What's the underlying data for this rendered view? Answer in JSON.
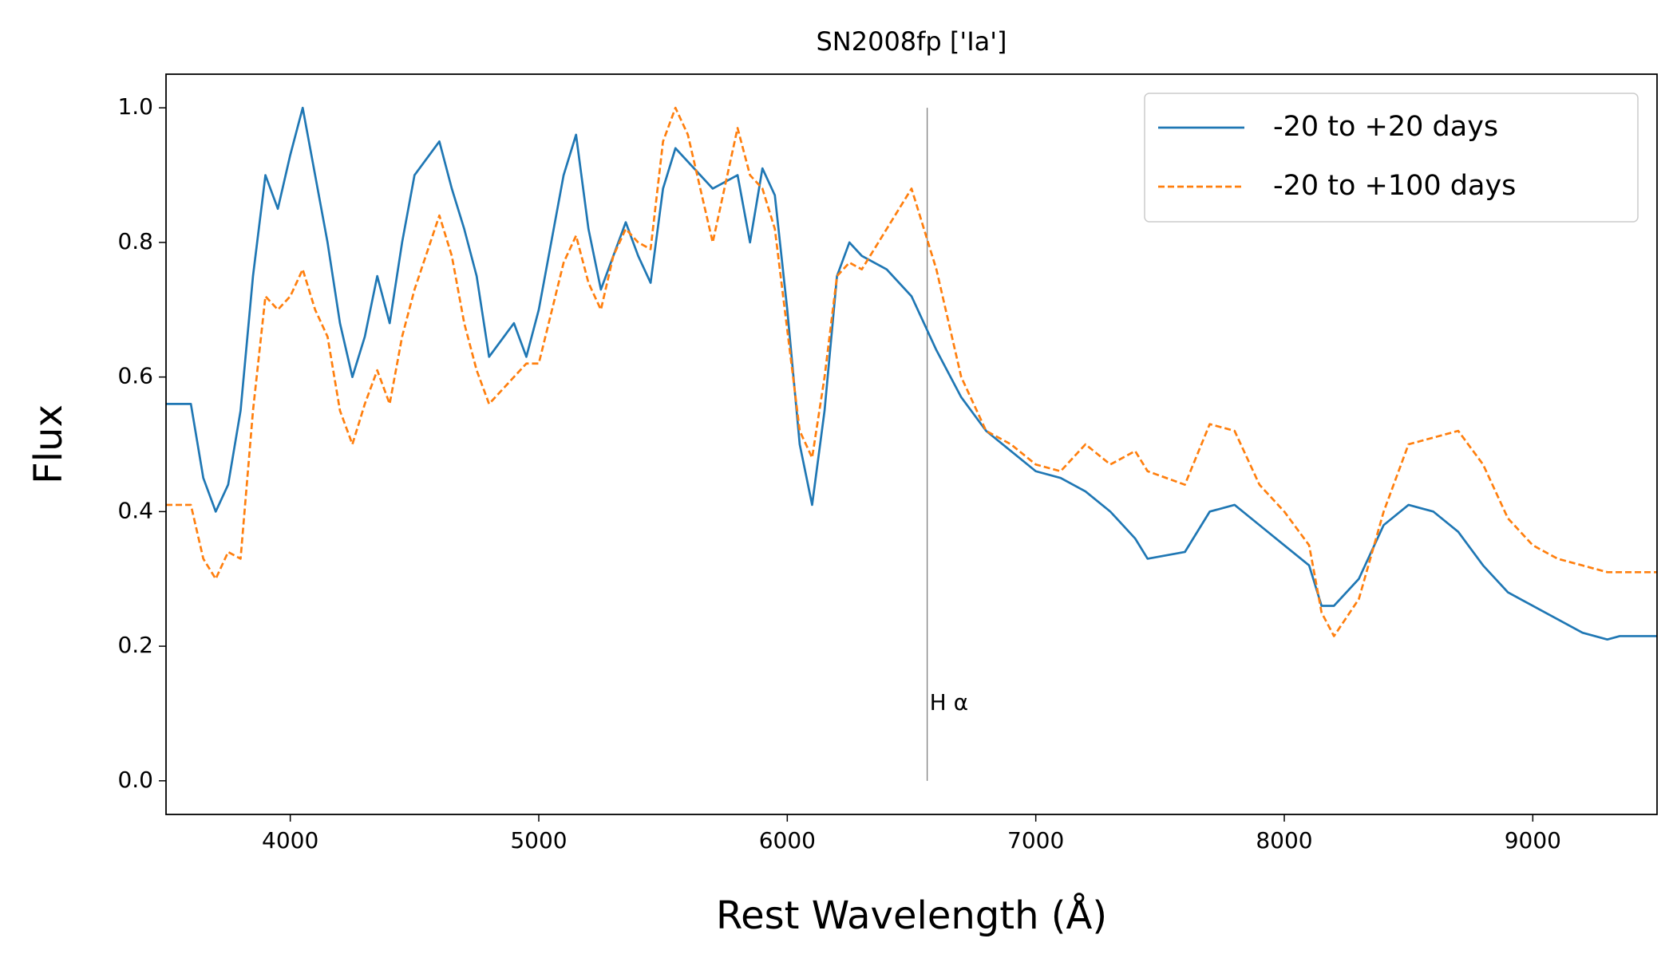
{
  "chart_data": {
    "type": "line",
    "title": "SN2008fp ['Ia']",
    "xlabel": "Rest Wavelength (Å)",
    "ylabel": "Flux",
    "x": [
      3500,
      3600,
      3650,
      3700,
      3750,
      3800,
      3850,
      3900,
      3950,
      4000,
      4050,
      4100,
      4150,
      4200,
      4250,
      4300,
      4350,
      4400,
      4450,
      4500,
      4600,
      4650,
      4700,
      4750,
      4800,
      4900,
      4950,
      5000,
      5100,
      5150,
      5200,
      5250,
      5300,
      5350,
      5400,
      5450,
      5500,
      5550,
      5600,
      5700,
      5800,
      5850,
      5900,
      5950,
      6000,
      6050,
      6100,
      6150,
      6200,
      6250,
      6300,
      6400,
      6500,
      6600,
      6700,
      6800,
      6900,
      7000,
      7100,
      7200,
      7300,
      7400,
      7450,
      7600,
      7700,
      7800,
      7900,
      8000,
      8100,
      8150,
      8200,
      8300,
      8400,
      8500,
      8600,
      8700,
      8800,
      8900,
      9000,
      9100,
      9200,
      9300,
      9350,
      9500
    ],
    "series": [
      {
        "name": "-20 to +20 days",
        "color": "#1f77b4",
        "dash": "solid",
        "values": [
          0.56,
          0.56,
          0.45,
          0.4,
          0.44,
          0.55,
          0.75,
          0.9,
          0.85,
          0.93,
          1.0,
          0.9,
          0.8,
          0.68,
          0.6,
          0.66,
          0.75,
          0.68,
          0.8,
          0.9,
          0.95,
          0.88,
          0.82,
          0.75,
          0.63,
          0.68,
          0.63,
          0.7,
          0.9,
          0.96,
          0.82,
          0.73,
          0.78,
          0.83,
          0.78,
          0.74,
          0.88,
          0.94,
          0.92,
          0.88,
          0.9,
          0.8,
          0.91,
          0.87,
          0.7,
          0.5,
          0.41,
          0.55,
          0.75,
          0.8,
          0.78,
          0.76,
          0.72,
          0.64,
          0.57,
          0.52,
          0.49,
          0.46,
          0.45,
          0.43,
          0.4,
          0.36,
          0.33,
          0.34,
          0.4,
          0.41,
          0.38,
          0.35,
          0.32,
          0.26,
          0.26,
          0.3,
          0.38,
          0.41,
          0.4,
          0.37,
          0.32,
          0.28,
          0.26,
          0.24,
          0.22,
          0.21,
          0.215,
          0.215
        ]
      },
      {
        "name": "-20 to +100 days",
        "color": "#ff7f0e",
        "dash": "dashed",
        "values": [
          0.41,
          0.41,
          0.33,
          0.3,
          0.34,
          0.33,
          0.55,
          0.72,
          0.7,
          0.72,
          0.76,
          0.7,
          0.66,
          0.55,
          0.5,
          0.56,
          0.61,
          0.56,
          0.66,
          0.73,
          0.84,
          0.78,
          0.68,
          0.61,
          0.56,
          0.6,
          0.62,
          0.62,
          0.77,
          0.81,
          0.74,
          0.7,
          0.78,
          0.82,
          0.8,
          0.79,
          0.95,
          1.0,
          0.96,
          0.8,
          0.97,
          0.9,
          0.88,
          0.82,
          0.67,
          0.52,
          0.48,
          0.6,
          0.75,
          0.77,
          0.76,
          0.82,
          0.88,
          0.76,
          0.6,
          0.52,
          0.5,
          0.47,
          0.46,
          0.5,
          0.47,
          0.49,
          0.46,
          0.44,
          0.53,
          0.52,
          0.44,
          0.4,
          0.35,
          0.25,
          0.215,
          0.27,
          0.4,
          0.5,
          0.51,
          0.52,
          0.47,
          0.39,
          0.35,
          0.33,
          0.32,
          0.31,
          0.31,
          0.31
        ]
      }
    ],
    "vline": {
      "x": 6563,
      "ymin": 0,
      "ymax": 1.0,
      "label": "H α",
      "label_y": 0.115,
      "color": "#808080"
    },
    "xlim": [
      3500,
      9500
    ],
    "xticks": [
      4000,
      5000,
      6000,
      7000,
      8000,
      9000
    ],
    "ylim": [
      -0.05,
      1.05
    ],
    "yticks": [
      {
        "value": 0,
        "label": "0.0"
      },
      0.2,
      0.4,
      0.6,
      0.8,
      {
        "value": 1,
        "label": "1.0"
      }
    ],
    "legend": "upper right"
  }
}
